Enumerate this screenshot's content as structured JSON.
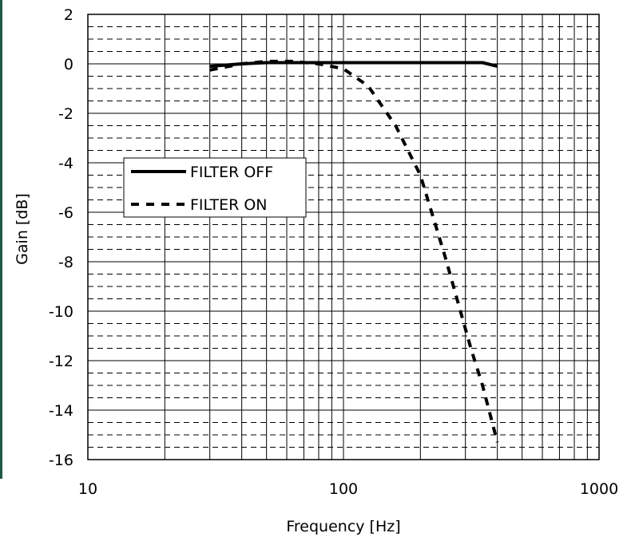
{
  "chart_data": {
    "type": "line",
    "title": "",
    "xlabel": "Frequency [Hz]",
    "ylabel": "Gain [dB]",
    "xscale": "log",
    "xlim": [
      10,
      1000
    ],
    "ylim": [
      -16,
      2
    ],
    "x_ticks": [
      10,
      100,
      1000
    ],
    "x_tick_labels": [
      "10",
      "100",
      "1000"
    ],
    "y_ticks": [
      2,
      0,
      -2,
      -4,
      -6,
      -8,
      -10,
      -12,
      -14,
      -16
    ],
    "y_tick_labels": [
      "2",
      "0",
      "-2",
      "-4",
      "-6",
      "-8",
      "-10",
      "-12",
      "-14",
      "-16"
    ],
    "grid": "major solid, minor dashed",
    "legend_position": "middle-left",
    "series": [
      {
        "name": "FILTER OFF",
        "style": "solid",
        "color": "#000000",
        "x": [
          30,
          40,
          50,
          63,
          80,
          100,
          125,
          160,
          200,
          250,
          315,
          350,
          400
        ],
        "y": [
          -0.1,
          0.0,
          0.05,
          0.05,
          0.05,
          0.05,
          0.05,
          0.05,
          0.05,
          0.05,
          0.05,
          0.05,
          -0.1
        ]
      },
      {
        "name": "FILTER ON",
        "style": "dashed",
        "color": "#000000",
        "x": [
          30,
          40,
          50,
          63,
          80,
          100,
          125,
          160,
          200,
          250,
          315,
          350,
          400
        ],
        "y": [
          -0.25,
          0.0,
          0.1,
          0.1,
          0.0,
          -0.2,
          -0.9,
          -2.5,
          -4.5,
          -7.8,
          -11.5,
          -13.0,
          -15.3
        ]
      }
    ]
  }
}
